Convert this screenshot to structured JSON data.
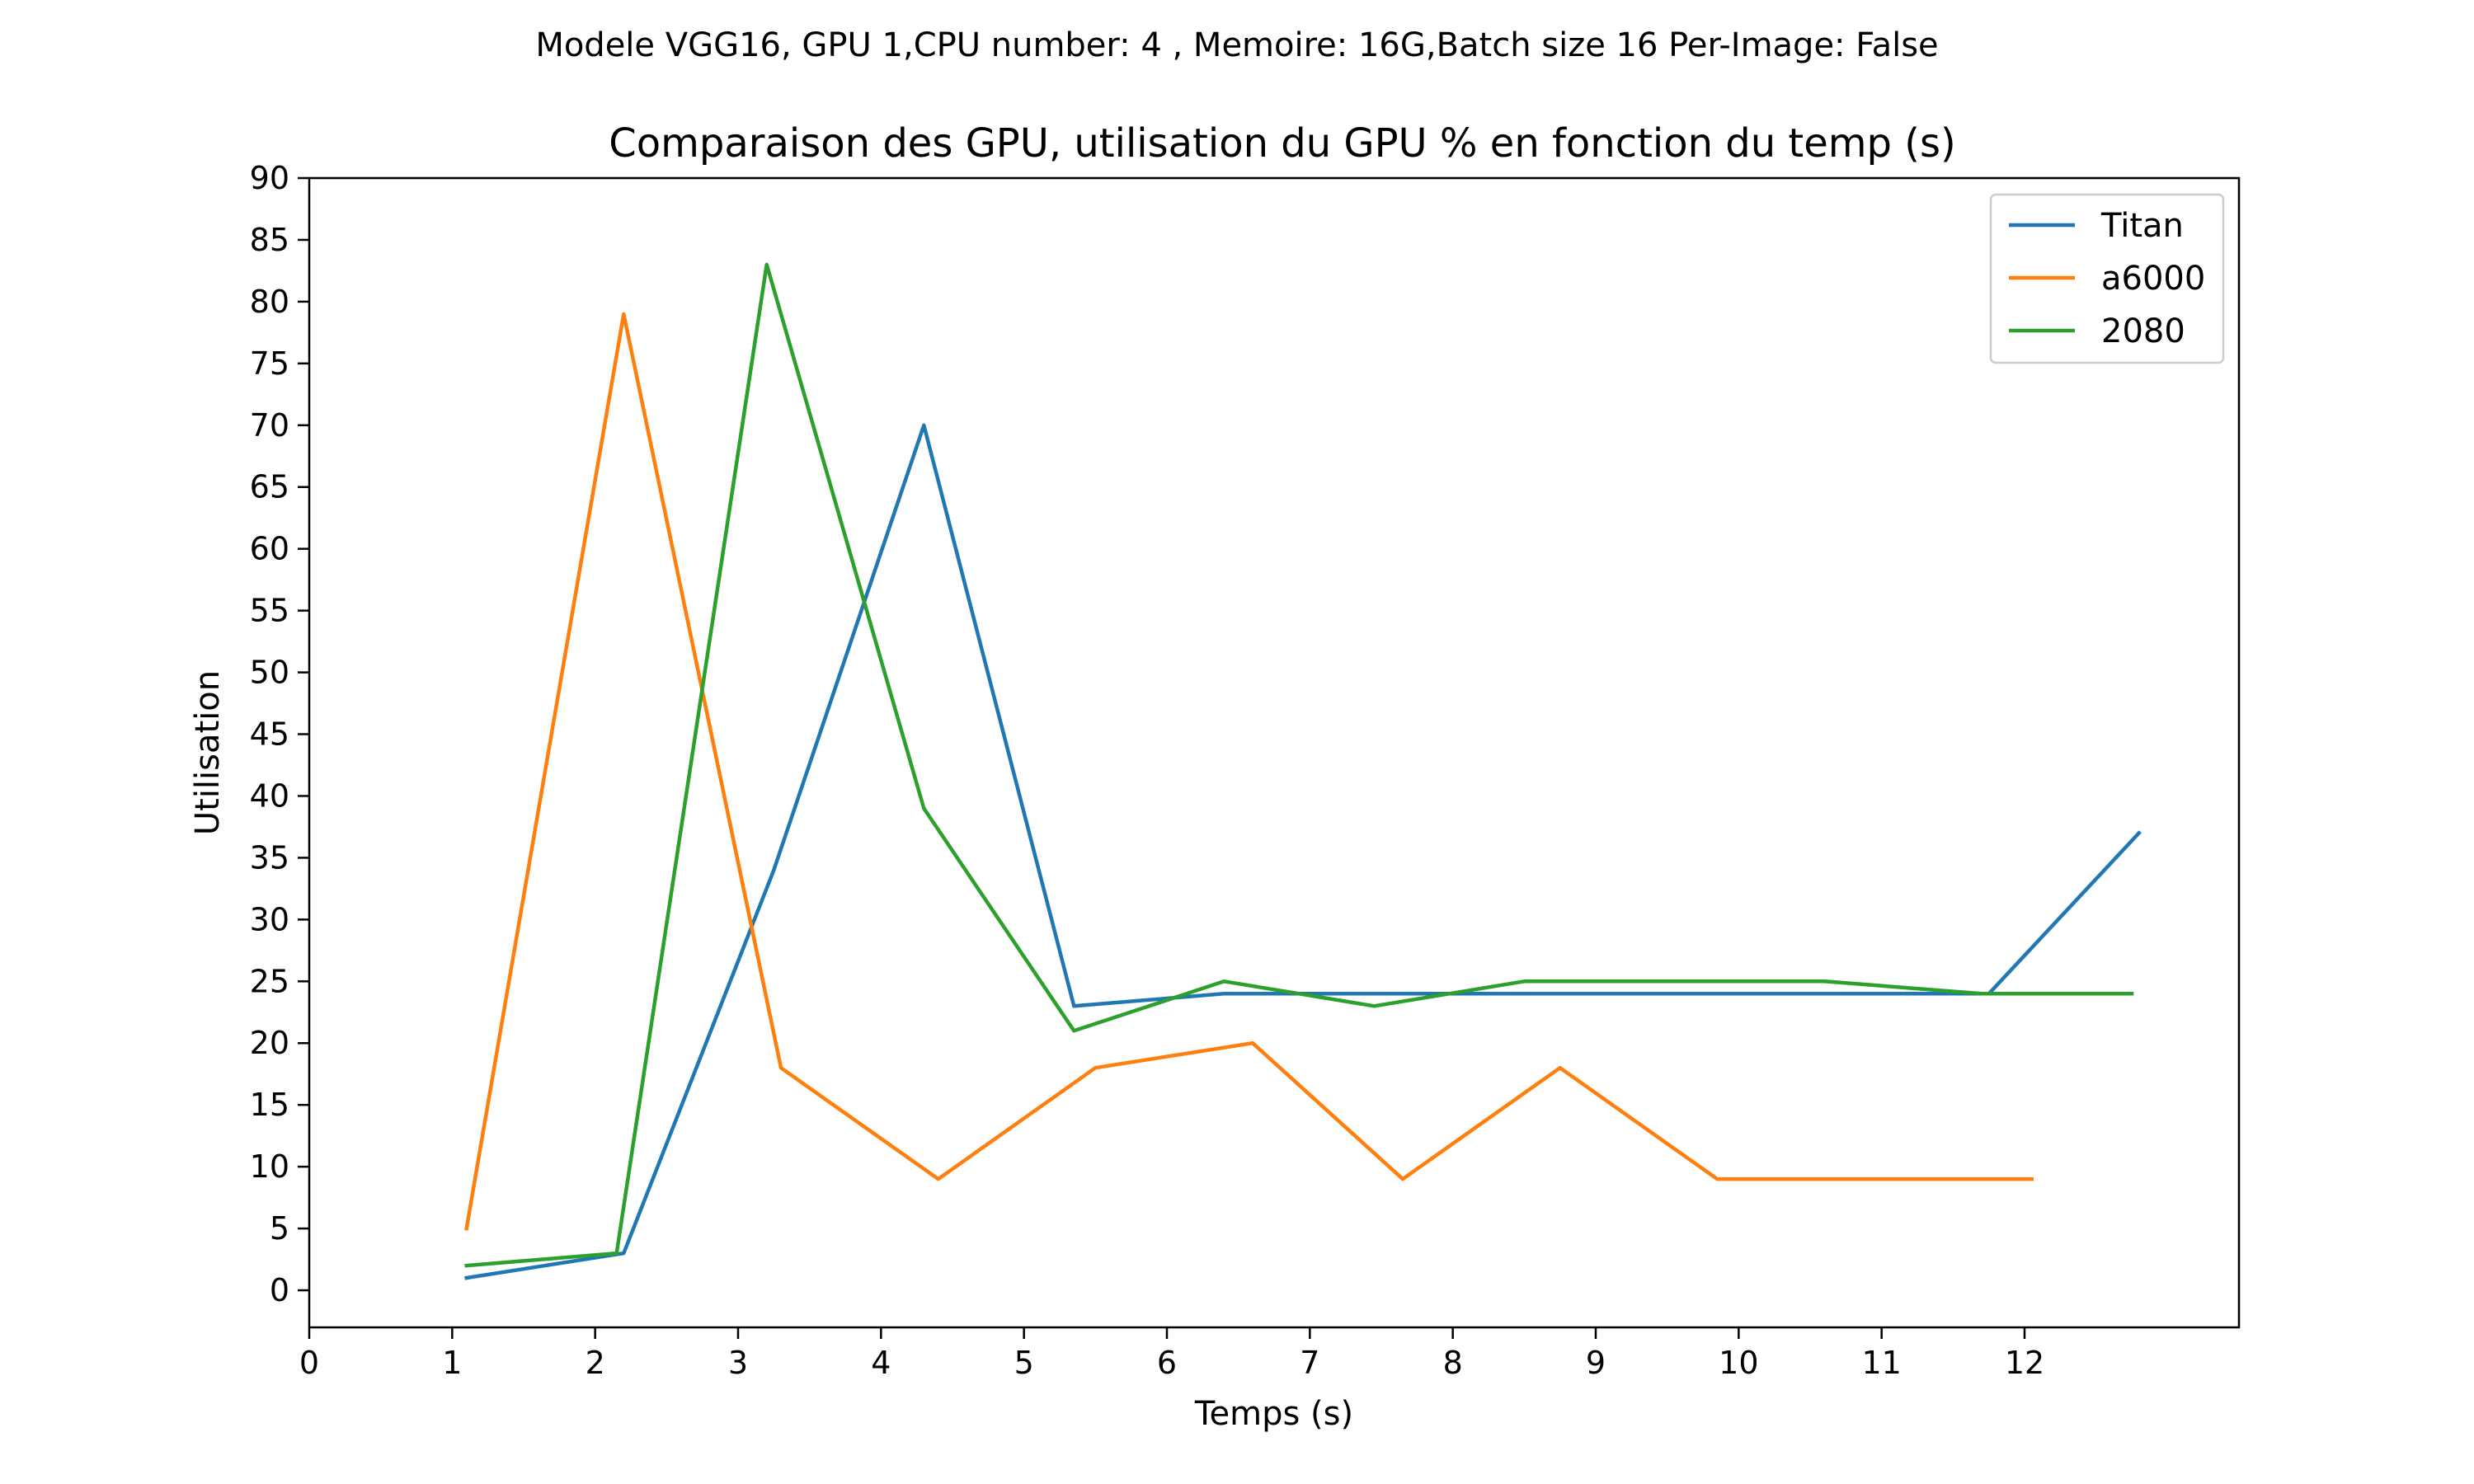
{
  "chart_data": {
    "type": "line",
    "suptitle": "Modele VGG16, GPU 1,CPU number: 4 , Memoire: 16G,Batch size 16 Per-Image: False",
    "title": "Comparaison des GPU, utilisation du GPU % en fonction du temp (s)",
    "xlabel": "Temps (s)",
    "ylabel": "Utilisation",
    "xlim": [
      0,
      13.5
    ],
    "ylim": [
      -3,
      90
    ],
    "xticks": [
      0,
      1,
      2,
      3,
      4,
      5,
      6,
      7,
      8,
      9,
      10,
      11,
      12
    ],
    "yticks": [
      0,
      5,
      10,
      15,
      20,
      25,
      30,
      35,
      40,
      45,
      50,
      55,
      60,
      65,
      70,
      75,
      80,
      85,
      90
    ],
    "grid": false,
    "legend_position": "top-right",
    "series": [
      {
        "name": "Titan",
        "color": "#1f77b4",
        "x": [
          1.1,
          2.2,
          3.25,
          4.3,
          5.35,
          6.4,
          7.45,
          8.5,
          9.55,
          10.65,
          11.75,
          12.8
        ],
        "y": [
          1,
          3,
          34,
          70,
          23,
          24,
          24,
          24,
          24,
          24,
          24,
          37
        ]
      },
      {
        "name": "a6000",
        "color": "#ff7f0e",
        "x": [
          1.1,
          2.2,
          3.3,
          4.4,
          5.5,
          6.6,
          7.65,
          8.75,
          9.85,
          10.95,
          12.05
        ],
        "y": [
          5,
          79,
          18,
          9,
          18,
          20,
          9,
          18,
          9,
          9,
          9
        ]
      },
      {
        "name": "2080",
        "color": "#2ca02c",
        "x": [
          1.1,
          2.15,
          3.2,
          4.3,
          5.35,
          6.4,
          7.45,
          8.5,
          9.55,
          10.6,
          11.7,
          12.75
        ],
        "y": [
          2,
          3,
          83,
          39,
          21,
          25,
          23,
          25,
          25,
          25,
          24,
          24
        ]
      }
    ]
  }
}
